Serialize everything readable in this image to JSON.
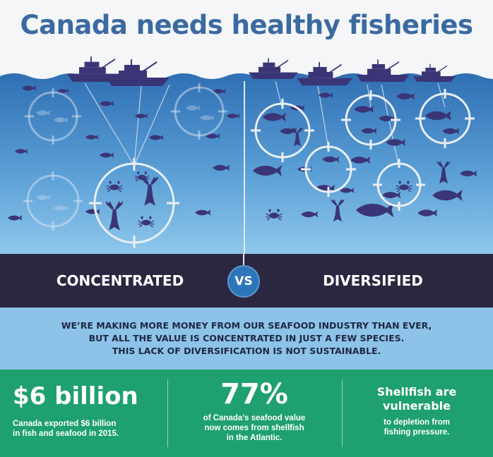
{
  "title": "Canada needs healthy fisheries",
  "colors": {
    "title": "#3a6aa0",
    "ocean_top": "#2f6fb3",
    "ocean_bottom": "#8fc7ec",
    "fish": "#3a3576",
    "band": "#2b2740",
    "vs_circle": "#2d75b8",
    "message_bg": "#8dc3e8",
    "stats_bg": "#1fa06f"
  },
  "illustration": {
    "icons": [
      "boat-icon",
      "fish-icon",
      "crab-icon",
      "lobster-icon",
      "target-ring-icon"
    ]
  },
  "comparison": {
    "left_label": "CONCENTRATED",
    "vs_label": "VS",
    "right_label": "DIVERSIFIED"
  },
  "message": {
    "line1": "WE’RE MAKING MORE MONEY FROM OUR SEAFOOD INDUSTRY THAN EVER,",
    "line2": "BUT ALL THE VALUE IS CONCENTRATED IN JUST A FEW SPECIES.",
    "line3": "THIS LACK OF DIVERSIFICATION IS NOT SUSTAINABLE."
  },
  "stats": [
    {
      "headline": "$6 billion",
      "line1": "Canada exported $6 billion",
      "line2": "in fish and seafood in 2015."
    },
    {
      "headline": "77%",
      "line1": "of Canada’s seafood value",
      "line2": "now comes from shellfish",
      "line3": "in the Atlantic."
    },
    {
      "headline_line1": "Shellfish are",
      "headline_line2": "vulnerable",
      "line1": "to depletion from",
      "line2": "fishing pressure."
    }
  ]
}
